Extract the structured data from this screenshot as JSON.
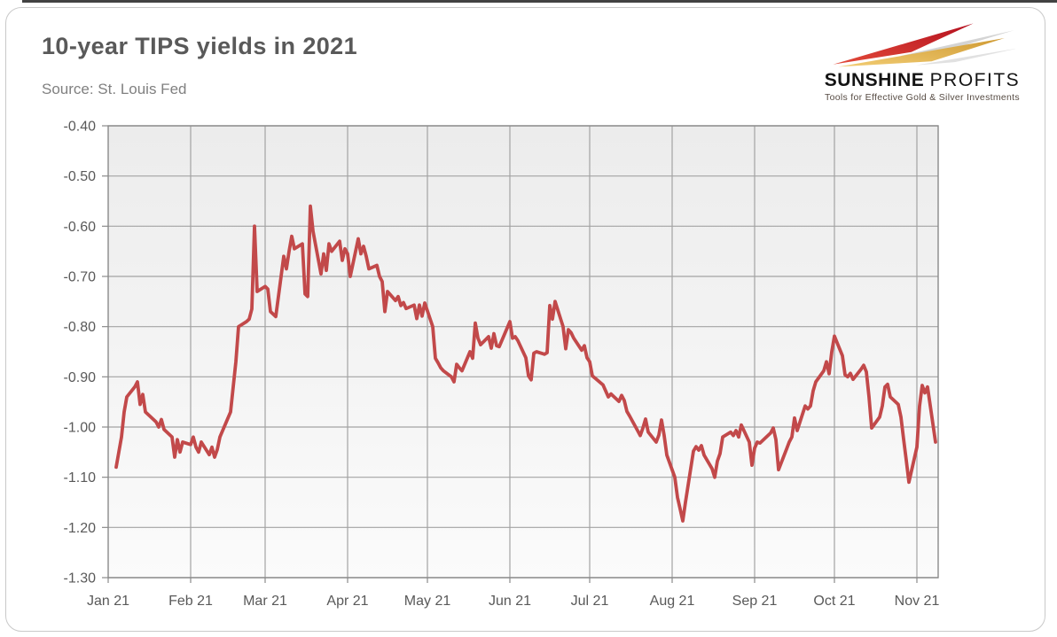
{
  "header": {
    "title": "10-year TIPS yields in 2021",
    "source": "Source: St. Louis Fed"
  },
  "logo": {
    "name_bold": "SUNSHINE",
    "name_light": "PROFITS",
    "tagline": "Tools for Effective Gold & Silver Investments",
    "colors": {
      "red": "#c0202c",
      "gold": "#dda43c",
      "shadow": "#c9c9c9",
      "text": "#141414",
      "tagline": "#564b43"
    }
  },
  "chart_data": {
    "type": "line",
    "title": "10-year TIPS yields in 2021",
    "source": "Source: St. Louis Fed",
    "xlabel": "",
    "ylabel": "",
    "ylim": [
      -1.3,
      -0.4
    ],
    "grid": true,
    "legend": "none",
    "plot_bg_top": "#ececec",
    "plot_bg_bottom": "#fbfbfb",
    "grid_color": "#a3a3a3",
    "border_color": "#8a8a8a",
    "label_color": "#595959",
    "y_tick_labels": [
      "-0.40",
      "-0.50",
      "-0.60",
      "-0.70",
      "-0.80",
      "-0.90",
      "-1.00",
      "-1.10",
      "-1.20",
      "-1.30"
    ],
    "y_tick_values": [
      -0.4,
      -0.5,
      -0.6,
      -0.7,
      -0.8,
      -0.9,
      -1.0,
      -1.1,
      -1.2,
      -1.3
    ],
    "x_tick_labels": [
      "Jan 21",
      "Feb 21",
      "Mar 21",
      "Apr 21",
      "May 21",
      "Jun 21",
      "Jul 21",
      "Aug 21",
      "Sep 21",
      "Oct 21",
      "Nov 21"
    ],
    "x_tick_days": [
      1,
      32,
      60,
      91,
      121,
      152,
      182,
      213,
      244,
      274,
      305
    ],
    "x_domain_days": [
      1,
      313
    ],
    "series": [
      {
        "name": "10-year TIPS yield (%)",
        "color": "#c2494a",
        "points": [
          [
            4,
            -1.08
          ],
          [
            5,
            -1.05
          ],
          [
            6,
            -1.02
          ],
          [
            7,
            -0.97
          ],
          [
            8,
            -0.94
          ],
          [
            11,
            -0.92
          ],
          [
            12,
            -0.91
          ],
          [
            13,
            -0.955
          ],
          [
            14,
            -0.935
          ],
          [
            15,
            -0.97
          ],
          [
            19,
            -0.99
          ],
          [
            20,
            -1.0
          ],
          [
            21,
            -0.985
          ],
          [
            22,
            -1.005
          ],
          [
            25,
            -1.02
          ],
          [
            26,
            -1.06
          ],
          [
            27,
            -1.025
          ],
          [
            28,
            -1.05
          ],
          [
            29,
            -1.03
          ],
          [
            32,
            -1.035
          ],
          [
            33,
            -1.02
          ],
          [
            34,
            -1.04
          ],
          [
            35,
            -1.05
          ],
          [
            36,
            -1.03
          ],
          [
            39,
            -1.055
          ],
          [
            40,
            -1.04
          ],
          [
            41,
            -1.06
          ],
          [
            42,
            -1.045
          ],
          [
            43,
            -1.02
          ],
          [
            47,
            -0.97
          ],
          [
            48,
            -0.92
          ],
          [
            49,
            -0.87
          ],
          [
            50,
            -0.8
          ],
          [
            53,
            -0.79
          ],
          [
            54,
            -0.785
          ],
          [
            55,
            -0.765
          ],
          [
            56,
            -0.6
          ],
          [
            57,
            -0.73
          ],
          [
            60,
            -0.72
          ],
          [
            61,
            -0.725
          ],
          [
            62,
            -0.77
          ],
          [
            63,
            -0.775
          ],
          [
            64,
            -0.78
          ],
          [
            67,
            -0.66
          ],
          [
            68,
            -0.685
          ],
          [
            69,
            -0.65
          ],
          [
            70,
            -0.62
          ],
          [
            71,
            -0.645
          ],
          [
            74,
            -0.635
          ],
          [
            75,
            -0.735
          ],
          [
            76,
            -0.74
          ],
          [
            77,
            -0.56
          ],
          [
            78,
            -0.61
          ],
          [
            81,
            -0.695
          ],
          [
            82,
            -0.655
          ],
          [
            83,
            -0.688
          ],
          [
            84,
            -0.635
          ],
          [
            85,
            -0.65
          ],
          [
            88,
            -0.63
          ],
          [
            89,
            -0.668
          ],
          [
            90,
            -0.645
          ],
          [
            91,
            -0.655
          ],
          [
            92,
            -0.7
          ],
          [
            95,
            -0.625
          ],
          [
            96,
            -0.655
          ],
          [
            97,
            -0.64
          ],
          [
            98,
            -0.66
          ],
          [
            99,
            -0.685
          ],
          [
            102,
            -0.678
          ],
          [
            103,
            -0.7
          ],
          [
            104,
            -0.71
          ],
          [
            105,
            -0.77
          ],
          [
            106,
            -0.73
          ],
          [
            109,
            -0.748
          ],
          [
            110,
            -0.74
          ],
          [
            111,
            -0.758
          ],
          [
            112,
            -0.752
          ],
          [
            113,
            -0.764
          ],
          [
            116,
            -0.757
          ],
          [
            117,
            -0.784
          ],
          [
            118,
            -0.757
          ],
          [
            119,
            -0.779
          ],
          [
            120,
            -0.753
          ],
          [
            123,
            -0.8
          ],
          [
            124,
            -0.863
          ],
          [
            125,
            -0.872
          ],
          [
            126,
            -0.882
          ],
          [
            127,
            -0.888
          ],
          [
            130,
            -0.9
          ],
          [
            131,
            -0.91
          ],
          [
            132,
            -0.875
          ],
          [
            133,
            -0.882
          ],
          [
            134,
            -0.888
          ],
          [
            137,
            -0.85
          ],
          [
            138,
            -0.863
          ],
          [
            139,
            -0.793
          ],
          [
            140,
            -0.823
          ],
          [
            141,
            -0.836
          ],
          [
            144,
            -0.82
          ],
          [
            145,
            -0.843
          ],
          [
            146,
            -0.814
          ],
          [
            147,
            -0.838
          ],
          [
            148,
            -0.84
          ],
          [
            152,
            -0.79
          ],
          [
            153,
            -0.823
          ],
          [
            154,
            -0.82
          ],
          [
            155,
            -0.828
          ],
          [
            158,
            -0.862
          ],
          [
            159,
            -0.898
          ],
          [
            160,
            -0.906
          ],
          [
            161,
            -0.853
          ],
          [
            162,
            -0.85
          ],
          [
            165,
            -0.855
          ],
          [
            166,
            -0.852
          ],
          [
            167,
            -0.758
          ],
          [
            168,
            -0.785
          ],
          [
            169,
            -0.75
          ],
          [
            172,
            -0.8
          ],
          [
            173,
            -0.844
          ],
          [
            174,
            -0.806
          ],
          [
            175,
            -0.812
          ],
          [
            176,
            -0.823
          ],
          [
            179,
            -0.847
          ],
          [
            180,
            -0.838
          ],
          [
            181,
            -0.862
          ],
          [
            182,
            -0.87
          ],
          [
            183,
            -0.898
          ],
          [
            187,
            -0.916
          ],
          [
            188,
            -0.928
          ],
          [
            189,
            -0.94
          ],
          [
            190,
            -0.934
          ],
          [
            193,
            -0.949
          ],
          [
            194,
            -0.937
          ],
          [
            195,
            -0.947
          ],
          [
            196,
            -0.969
          ],
          [
            197,
            -0.978
          ],
          [
            200,
            -1.007
          ],
          [
            201,
            -1.017
          ],
          [
            202,
            -1.002
          ],
          [
            203,
            -0.984
          ],
          [
            204,
            -1.01
          ],
          [
            207,
            -1.03
          ],
          [
            208,
            -1.016
          ],
          [
            209,
            -0.986
          ],
          [
            210,
            -1.017
          ],
          [
            211,
            -1.056
          ],
          [
            214,
            -1.1
          ],
          [
            215,
            -1.14
          ],
          [
            216,
            -1.163
          ],
          [
            217,
            -1.187
          ],
          [
            218,
            -1.15
          ],
          [
            221,
            -1.048
          ],
          [
            222,
            -1.039
          ],
          [
            223,
            -1.046
          ],
          [
            224,
            -1.037
          ],
          [
            225,
            -1.056
          ],
          [
            228,
            -1.083
          ],
          [
            229,
            -1.1
          ],
          [
            230,
            -1.068
          ],
          [
            231,
            -1.053
          ],
          [
            232,
            -1.02
          ],
          [
            235,
            -1.01
          ],
          [
            236,
            -1.017
          ],
          [
            237,
            -1.007
          ],
          [
            238,
            -1.02
          ],
          [
            239,
            -0.996
          ],
          [
            242,
            -1.03
          ],
          [
            243,
            -1.076
          ],
          [
            244,
            -1.042
          ],
          [
            245,
            -1.03
          ],
          [
            246,
            -1.032
          ],
          [
            250,
            -1.012
          ],
          [
            251,
            -1.002
          ],
          [
            252,
            -1.025
          ],
          [
            253,
            -1.085
          ],
          [
            256,
            -1.044
          ],
          [
            257,
            -1.03
          ],
          [
            258,
            -1.02
          ],
          [
            259,
            -0.982
          ],
          [
            260,
            -1.007
          ],
          [
            263,
            -0.958
          ],
          [
            264,
            -0.964
          ],
          [
            265,
            -0.958
          ],
          [
            266,
            -0.928
          ],
          [
            267,
            -0.91
          ],
          [
            270,
            -0.888
          ],
          [
            271,
            -0.87
          ],
          [
            272,
            -0.894
          ],
          [
            273,
            -0.85
          ],
          [
            274,
            -0.819
          ],
          [
            277,
            -0.858
          ],
          [
            278,
            -0.896
          ],
          [
            279,
            -0.9
          ],
          [
            280,
            -0.893
          ],
          [
            281,
            -0.905
          ],
          [
            284,
            -0.885
          ],
          [
            285,
            -0.877
          ],
          [
            286,
            -0.89
          ],
          [
            287,
            -0.94
          ],
          [
            288,
            -1.002
          ],
          [
            291,
            -0.98
          ],
          [
            292,
            -0.958
          ],
          [
            293,
            -0.92
          ],
          [
            294,
            -0.915
          ],
          [
            295,
            -0.94
          ],
          [
            298,
            -0.955
          ],
          [
            299,
            -0.98
          ],
          [
            300,
            -1.024
          ],
          [
            301,
            -1.066
          ],
          [
            302,
            -1.11
          ],
          [
            305,
            -1.04
          ],
          [
            306,
            -0.958
          ],
          [
            307,
            -0.917
          ],
          [
            308,
            -0.932
          ],
          [
            309,
            -0.92
          ],
          [
            312,
            -1.03
          ]
        ]
      }
    ]
  }
}
